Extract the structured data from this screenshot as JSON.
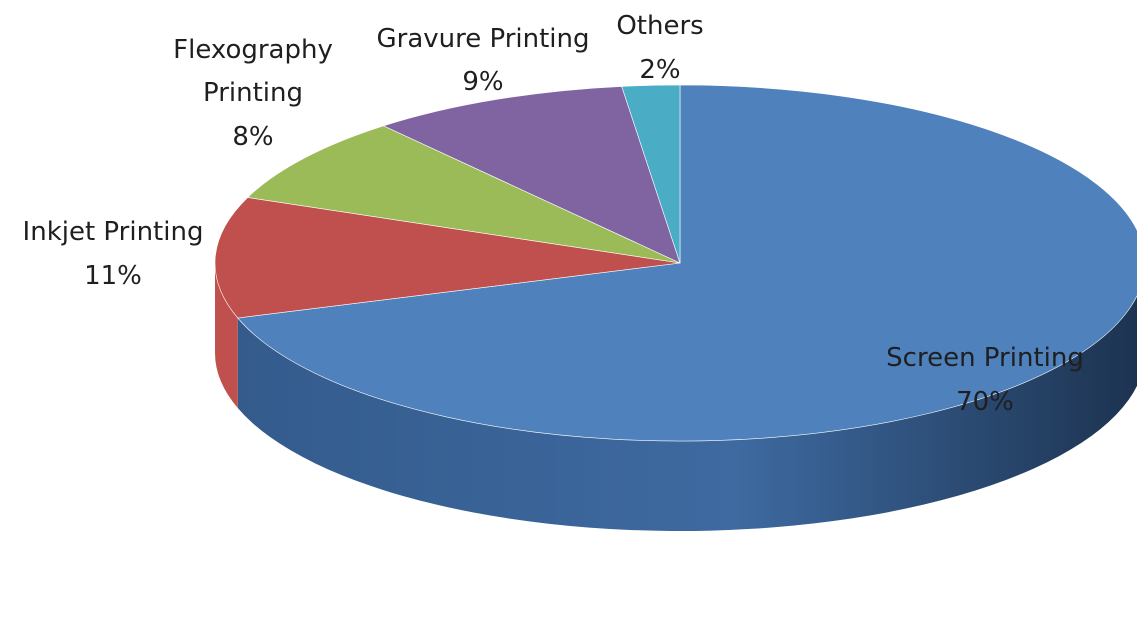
{
  "chart_data": {
    "type": "pie",
    "title": "",
    "slices": [
      {
        "label": "Screen Printing",
        "value": 70,
        "display": "70%",
        "color": "#4f81bd"
      },
      {
        "label": "Inkjet Printing",
        "value": 11,
        "display": "11%",
        "color": "#c0504d"
      },
      {
        "label": "Flexography Printing",
        "value": 8,
        "display": "8%",
        "color": "#9bbb59"
      },
      {
        "label": "Gravure Printing",
        "value": 9,
        "display": "9%",
        "color": "#8064a2"
      },
      {
        "label": "Others",
        "value": 2,
        "display": "2%",
        "color": "#4bacc6"
      }
    ],
    "legend": "none",
    "style": "3d-pie"
  }
}
